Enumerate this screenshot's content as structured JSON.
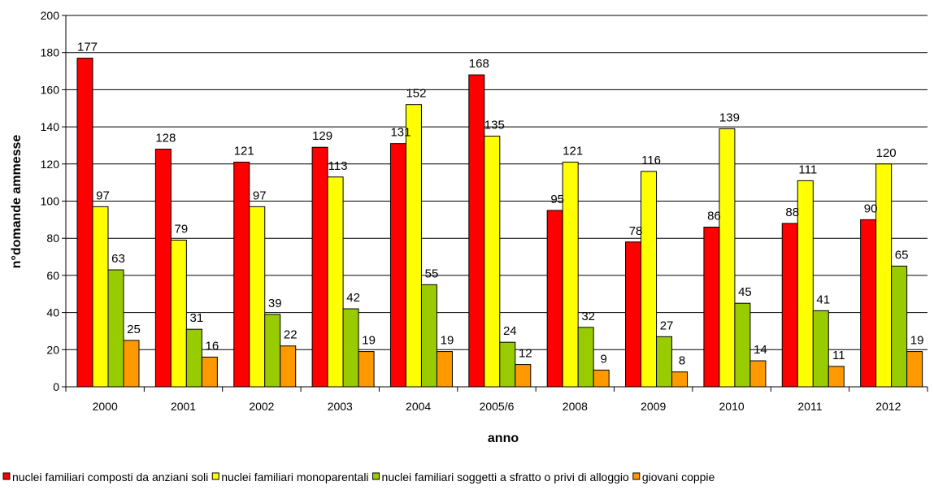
{
  "chart_data": {
    "type": "bar",
    "xlabel": "anno",
    "ylabel": "n°domande ammesse",
    "ylim": [
      0,
      200
    ],
    "ytick_step": 20,
    "grid": true,
    "legend_position": "bottom",
    "categories": [
      "2000",
      "2001",
      "2002",
      "2003",
      "2004",
      "2005/6",
      "2008",
      "2009",
      "2010",
      "2011",
      "2012"
    ],
    "series": [
      {
        "name": "nuclei familiari composti da anziani soli",
        "color": "#FF0000",
        "values": [
          177,
          128,
          121,
          129,
          131,
          168,
          95,
          78,
          86,
          88,
          90
        ]
      },
      {
        "name": "nuclei familiari monoparentali",
        "color": "#FFFF00",
        "values": [
          97,
          79,
          97,
          113,
          152,
          135,
          121,
          116,
          139,
          111,
          120
        ]
      },
      {
        "name": "nuclei familiari soggetti a sfratto o privi di alloggio",
        "color": "#99CC00",
        "values": [
          63,
          31,
          39,
          42,
          55,
          24,
          32,
          27,
          45,
          41,
          65
        ]
      },
      {
        "name": "giovani coppie",
        "color": "#FF9900",
        "values": [
          25,
          16,
          22,
          19,
          19,
          12,
          9,
          8,
          14,
          11,
          19
        ]
      }
    ]
  }
}
